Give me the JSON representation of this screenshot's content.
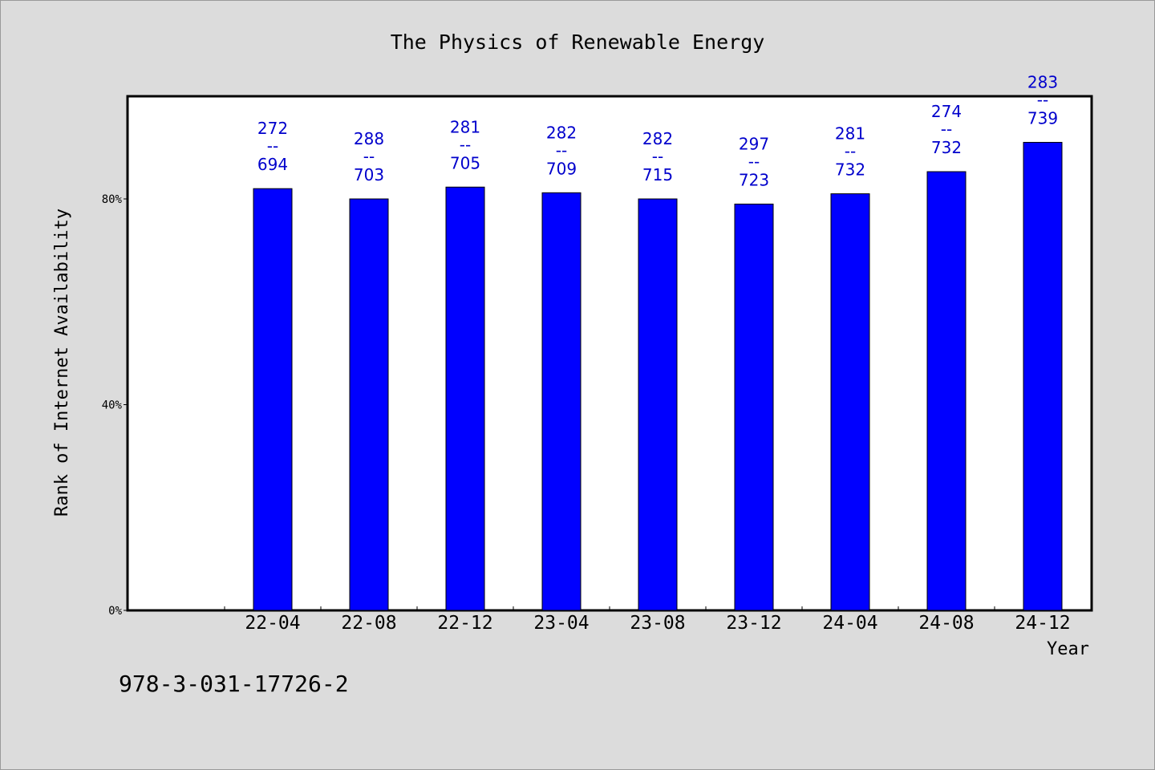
{
  "chart_data": {
    "type": "bar",
    "title": "The Physics of Renewable Energy",
    "xlabel": "Year",
    "ylabel": "Rank of Internet Availability",
    "categories": [
      "22-04",
      "22-08",
      "22-12",
      "23-04",
      "23-08",
      "23-12",
      "24-04",
      "24-08",
      "24-12"
    ],
    "values": [
      0.82,
      0.8,
      0.823,
      0.812,
      0.8,
      0.79,
      0.81,
      0.853,
      0.91
    ],
    "data_labels": [
      {
        "top": "272",
        "sep": "--",
        "bottom": "694"
      },
      {
        "top": "288",
        "sep": "--",
        "bottom": "703"
      },
      {
        "top": "281",
        "sep": "--",
        "bottom": "705"
      },
      {
        "top": "282",
        "sep": "--",
        "bottom": "709"
      },
      {
        "top": "282",
        "sep": "--",
        "bottom": "715"
      },
      {
        "top": "297",
        "sep": "--",
        "bottom": "723"
      },
      {
        "top": "281",
        "sep": "--",
        "bottom": "732"
      },
      {
        "top": "274",
        "sep": "--",
        "bottom": "732"
      },
      {
        "top": "283",
        "sep": "--",
        "bottom": "739"
      }
    ],
    "yticks": [
      {
        "value": 0,
        "label": "0%"
      },
      {
        "value": 0.4,
        "label": "40%"
      },
      {
        "value": 0.8,
        "label": "80%"
      }
    ],
    "ylim": [
      0,
      1.0
    ],
    "grid": false,
    "bar_color": "#0000ff",
    "label_color": "#0000cc",
    "background": "#dcdcdc",
    "plot_background": "#ffffff"
  },
  "footer": {
    "isbn": "978-3-031-17726-2"
  }
}
